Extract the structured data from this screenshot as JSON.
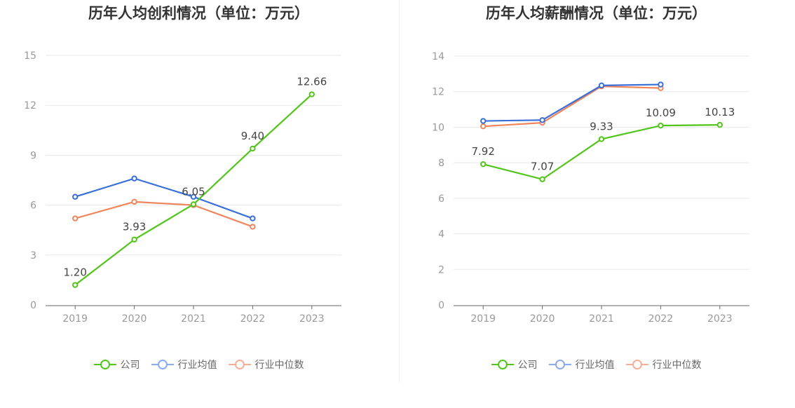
{
  "chart_data": [
    {
      "type": "line",
      "title": "历年人均创利情况（单位：万元）",
      "categories": [
        "2019",
        "2020",
        "2021",
        "2022",
        "2023"
      ],
      "ylim": [
        0,
        15
      ],
      "yticks": [
        0,
        3,
        6,
        9,
        12,
        15
      ],
      "grid": true,
      "legend_position": "bottom",
      "series": [
        {
          "name": "公司",
          "color": "#52c41a",
          "values": [
            1.2,
            3.93,
            6.05,
            9.4,
            12.66
          ],
          "labels": [
            "1.20",
            "3.93",
            "6.05",
            "9.40",
            "12.66"
          ]
        },
        {
          "name": "行业均值",
          "color": "#3a6fd8",
          "values": [
            6.5,
            7.6,
            6.5,
            5.2,
            null
          ]
        },
        {
          "name": "行业中位数",
          "color": "#f0845a",
          "values": [
            5.2,
            6.2,
            6.0,
            4.7,
            null
          ]
        }
      ]
    },
    {
      "type": "line",
      "title": "历年人均薪酬情况（单位：万元）",
      "categories": [
        "2019",
        "2020",
        "2021",
        "2022",
        "2023"
      ],
      "ylim": [
        0,
        14
      ],
      "yticks": [
        0,
        2,
        4,
        6,
        8,
        10,
        12,
        14
      ],
      "grid": true,
      "legend_position": "bottom",
      "series": [
        {
          "name": "公司",
          "color": "#52c41a",
          "values": [
            7.92,
            7.07,
            9.33,
            10.09,
            10.13
          ],
          "labels": [
            "7.92",
            "7.07",
            "9.33",
            "10.09",
            "10.13"
          ]
        },
        {
          "name": "行业均值",
          "color": "#3a6fd8",
          "values": [
            10.35,
            10.4,
            12.35,
            12.4,
            null
          ]
        },
        {
          "name": "行业中位数",
          "color": "#f0845a",
          "values": [
            10.05,
            10.25,
            12.3,
            12.2,
            null
          ]
        }
      ]
    }
  ],
  "legend_colors": {
    "公司": "#52c41a",
    "行业均值": "#8aa9ef",
    "行业中位数": "#f5ae96"
  }
}
